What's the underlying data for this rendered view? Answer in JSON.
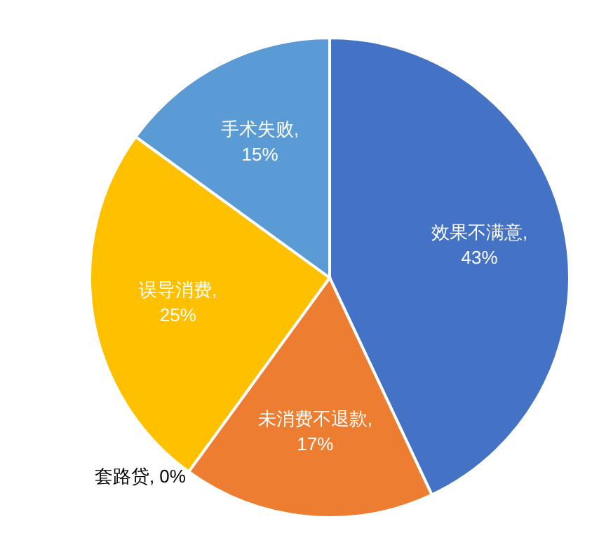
{
  "chart_data": {
    "type": "pie",
    "categories": [
      "效果不满意",
      "未消费不退款",
      "套路贷",
      "误导消费",
      "手术失败"
    ],
    "values": [
      43,
      17,
      0,
      25,
      15
    ],
    "colors": [
      "#4472c4",
      "#ed7d31",
      "#a5a5a5",
      "#ffc000",
      "#5b9bd5"
    ],
    "value_labels": [
      ", 43%",
      ", 17%",
      ", 0%",
      ", 25%",
      ", 15%"
    ]
  }
}
